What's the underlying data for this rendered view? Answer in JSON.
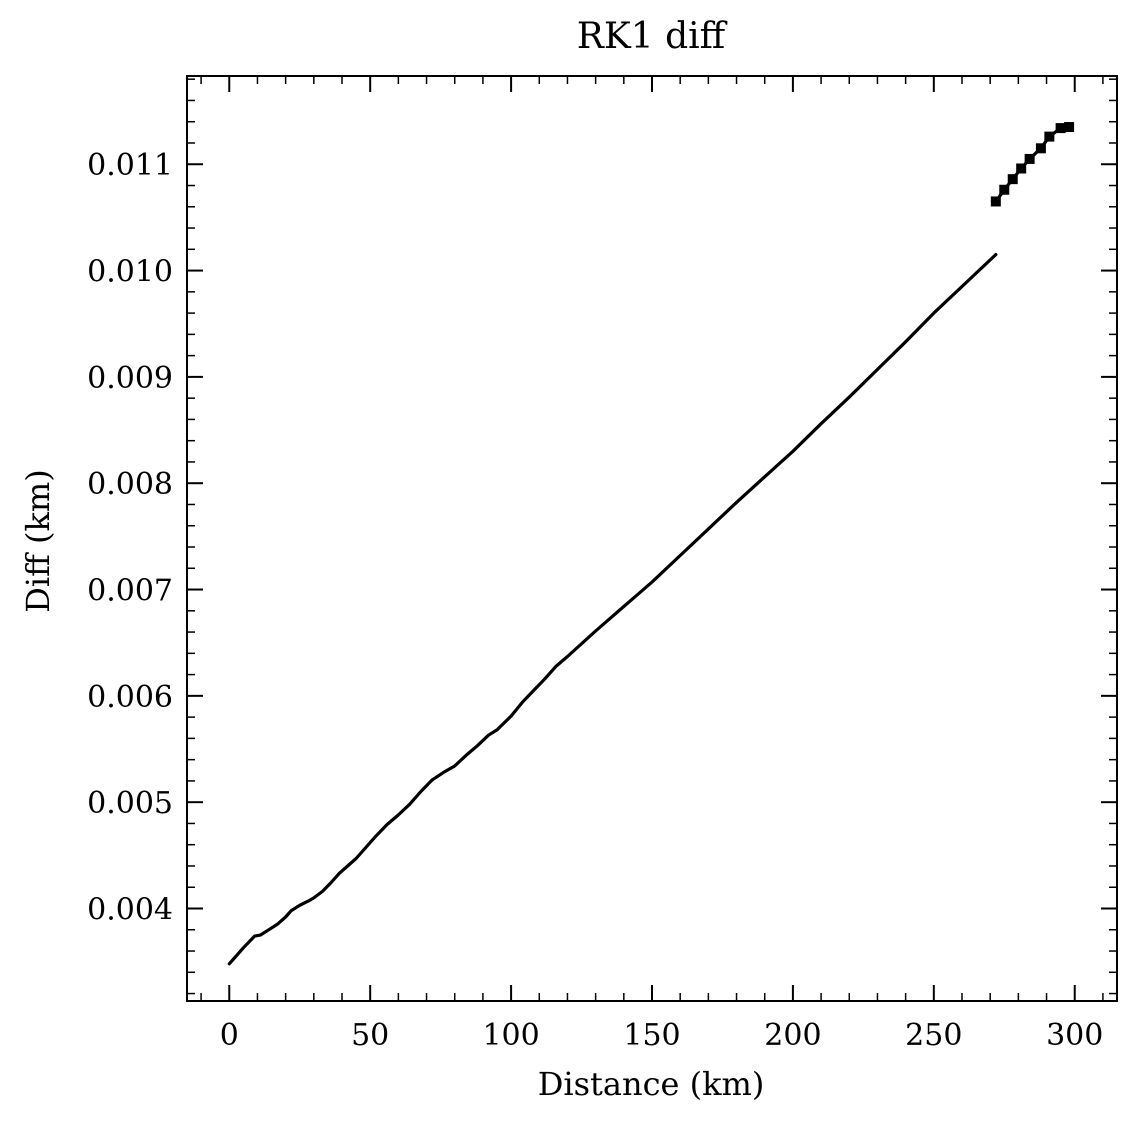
{
  "chart_data": {
    "type": "line",
    "title": "RK1 diff",
    "xlabel": "Distance (km)",
    "ylabel": "Diff (km)",
    "xlim": [
      -15,
      315
    ],
    "ylim": [
      0.00313,
      0.01183
    ],
    "xticks": [
      0,
      50,
      100,
      150,
      200,
      250,
      300
    ],
    "xtick_labels": [
      "0",
      "50",
      "100",
      "150",
      "200",
      "250",
      "300"
    ],
    "yticks": [
      0.004,
      0.005,
      0.006,
      0.007,
      0.008,
      0.009,
      0.01,
      0.011
    ],
    "ytick_labels": [
      "0.004",
      "0.005",
      "0.006",
      "0.007",
      "0.008",
      "0.009",
      "0.010",
      "0.011"
    ],
    "x_minor_step": 10,
    "y_minor_step": 0.0002,
    "grid": false,
    "series": [
      {
        "color": "#000000",
        "x": [
          0,
          5,
          9,
          11,
          14,
          17,
          20,
          22,
          25,
          28,
          30,
          33,
          36,
          39,
          42,
          45,
          48,
          52,
          56,
          60,
          64,
          68,
          72,
          76,
          80,
          84,
          88,
          92,
          95,
          100,
          104,
          108,
          112,
          116,
          120,
          130,
          140,
          150,
          160,
          170,
          180,
          190,
          200,
          210,
          220,
          230,
          240,
          250,
          260,
          272
        ],
        "y": [
          0.00348,
          0.00363,
          0.00374,
          0.00375,
          0.0038,
          0.00385,
          0.00392,
          0.00398,
          0.00403,
          0.00407,
          0.0041,
          0.00416,
          0.00424,
          0.00433,
          0.0044,
          0.00447,
          0.00456,
          0.00468,
          0.00479,
          0.00488,
          0.00498,
          0.0051,
          0.00521,
          0.00528,
          0.00534,
          0.00544,
          0.00553,
          0.00563,
          0.00568,
          0.00581,
          0.00594,
          0.00605,
          0.00616,
          0.00628,
          0.00637,
          0.00661,
          0.00684,
          0.00707,
          0.00732,
          0.00757,
          0.00782,
          0.00806,
          0.0083,
          0.00856,
          0.00881,
          0.00907,
          0.00933,
          0.0096,
          0.00985,
          0.01015
        ]
      },
      {
        "color": "#000000",
        "marker": "square",
        "x": [
          272,
          275,
          278,
          281,
          284,
          288,
          291,
          295,
          298
        ],
        "y": [
          0.01065,
          0.01076,
          0.01086,
          0.01096,
          0.01105,
          0.01115,
          0.01126,
          0.01134,
          0.01135
        ]
      }
    ]
  }
}
